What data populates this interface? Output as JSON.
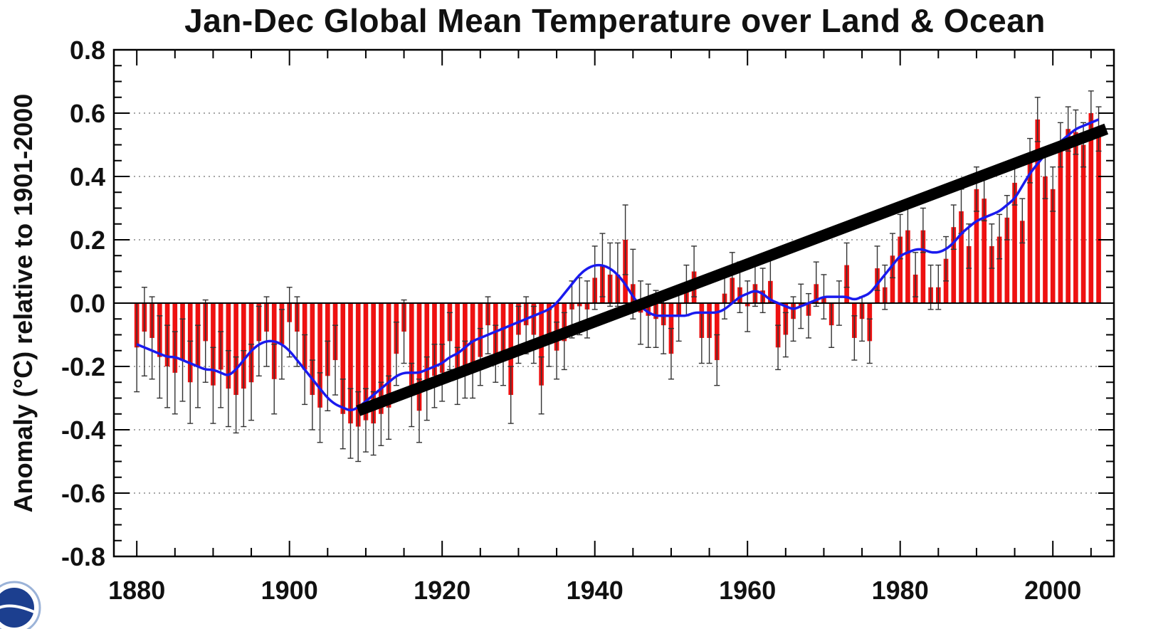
{
  "chart_data": {
    "type": "bar",
    "title": "Jan-Dec Global Mean Temperature over Land & Ocean",
    "ylabel": "Anomaly (°C) relative to 1901-2000",
    "xlabel": "",
    "xlim": [
      1877,
      2008
    ],
    "ylim": [
      -0.8,
      0.8
    ],
    "x_ticks": [
      1880,
      1900,
      1920,
      1940,
      1960,
      1980,
      2000
    ],
    "y_ticks": [
      -0.8,
      -0.6,
      -0.4,
      -0.2,
      0.0,
      0.2,
      0.4,
      0.6,
      0.8
    ],
    "y_tick_labels": [
      "-0.8",
      "-0.6",
      "-0.4",
      "-0.2",
      "0.0",
      "0.2",
      "0.4",
      "0.6",
      "0.8"
    ],
    "x_tick_labels": [
      "1880",
      "1900",
      "1920",
      "1940",
      "1960",
      "1980",
      "2000"
    ],
    "grid": "horizontal dotted at y ticks",
    "colors": {
      "bars": "#ee1111",
      "error_bars": "#333333",
      "smooth": "#1a1aee",
      "trend": "#000000",
      "axis": "#000000"
    },
    "years": [
      1880,
      1881,
      1882,
      1883,
      1884,
      1885,
      1886,
      1887,
      1888,
      1889,
      1890,
      1891,
      1892,
      1893,
      1894,
      1895,
      1896,
      1897,
      1898,
      1899,
      1900,
      1901,
      1902,
      1903,
      1904,
      1905,
      1906,
      1907,
      1908,
      1909,
      1910,
      1911,
      1912,
      1913,
      1914,
      1915,
      1916,
      1917,
      1918,
      1919,
      1920,
      1921,
      1922,
      1923,
      1924,
      1925,
      1926,
      1927,
      1928,
      1929,
      1930,
      1931,
      1932,
      1933,
      1934,
      1935,
      1936,
      1937,
      1938,
      1939,
      1940,
      1941,
      1942,
      1943,
      1944,
      1945,
      1946,
      1947,
      1948,
      1949,
      1950,
      1951,
      1952,
      1953,
      1954,
      1955,
      1956,
      1957,
      1958,
      1959,
      1960,
      1961,
      1962,
      1963,
      1964,
      1965,
      1966,
      1967,
      1968,
      1969,
      1970,
      1971,
      1972,
      1973,
      1974,
      1975,
      1976,
      1977,
      1978,
      1979,
      1980,
      1981,
      1982,
      1983,
      1984,
      1985,
      1986,
      1987,
      1988,
      1989,
      1990,
      1991,
      1992,
      1993,
      1994,
      1995,
      1996,
      1997,
      1998,
      1999,
      2000,
      2001,
      2002,
      2003,
      2004,
      2005,
      2006
    ],
    "anomaly": [
      -0.14,
      -0.09,
      -0.11,
      -0.17,
      -0.2,
      -0.22,
      -0.18,
      -0.25,
      -0.2,
      -0.12,
      -0.26,
      -0.21,
      -0.27,
      -0.29,
      -0.27,
      -0.25,
      -0.12,
      -0.09,
      -0.24,
      -0.13,
      -0.06,
      -0.09,
      -0.21,
      -0.29,
      -0.33,
      -0.23,
      -0.18,
      -0.35,
      -0.38,
      -0.39,
      -0.37,
      -0.38,
      -0.35,
      -0.33,
      -0.16,
      -0.09,
      -0.29,
      -0.34,
      -0.27,
      -0.23,
      -0.22,
      -0.12,
      -0.23,
      -0.21,
      -0.21,
      -0.17,
      -0.07,
      -0.16,
      -0.17,
      -0.29,
      -0.1,
      -0.07,
      -0.1,
      -0.26,
      -0.11,
      -0.15,
      -0.12,
      -0.02,
      -0.01,
      -0.02,
      0.08,
      0.12,
      0.09,
      0.09,
      0.2,
      0.06,
      -0.03,
      -0.04,
      -0.05,
      -0.07,
      -0.16,
      -0.04,
      0.04,
      0.1,
      -0.11,
      -0.11,
      -0.18,
      0.03,
      0.08,
      0.05,
      -0.01,
      0.06,
      0.04,
      0.07,
      -0.14,
      -0.1,
      -0.05,
      -0.01,
      -0.04,
      0.06,
      0.02,
      -0.07,
      0.0,
      0.12,
      -0.11,
      -0.05,
      -0.12,
      0.11,
      0.05,
      0.15,
      0.21,
      0.23,
      0.09,
      0.23,
      0.05,
      0.05,
      0.14,
      0.24,
      0.29,
      0.18,
      0.36,
      0.33,
      0.18,
      0.21,
      0.27,
      0.38,
      0.26,
      0.45,
      0.58,
      0.4,
      0.36,
      0.5,
      0.55,
      0.54,
      0.5,
      0.6,
      0.55
    ],
    "smoothed": [
      -0.13,
      -0.14,
      -0.15,
      -0.16,
      -0.17,
      -0.17,
      -0.18,
      -0.19,
      -0.2,
      -0.21,
      -0.21,
      -0.22,
      -0.23,
      -0.21,
      -0.18,
      -0.15,
      -0.13,
      -0.12,
      -0.12,
      -0.13,
      -0.15,
      -0.18,
      -0.21,
      -0.24,
      -0.27,
      -0.3,
      -0.32,
      -0.33,
      -0.34,
      -0.33,
      -0.31,
      -0.29,
      -0.27,
      -0.25,
      -0.23,
      -0.22,
      -0.22,
      -0.22,
      -0.21,
      -0.2,
      -0.19,
      -0.17,
      -0.16,
      -0.14,
      -0.12,
      -0.11,
      -0.1,
      -0.09,
      -0.08,
      -0.07,
      -0.06,
      -0.05,
      -0.04,
      -0.03,
      -0.02,
      0.0,
      0.03,
      0.06,
      0.09,
      0.11,
      0.12,
      0.12,
      0.11,
      0.09,
      0.06,
      0.02,
      -0.01,
      -0.03,
      -0.04,
      -0.04,
      -0.04,
      -0.04,
      -0.04,
      -0.03,
      -0.03,
      -0.03,
      -0.03,
      -0.02,
      0.0,
      0.02,
      0.03,
      0.04,
      0.03,
      0.01,
      0.0,
      -0.01,
      -0.02,
      -0.01,
      0.0,
      0.01,
      0.02,
      0.02,
      0.02,
      0.02,
      0.01,
      0.02,
      0.03,
      0.06,
      0.09,
      0.12,
      0.15,
      0.16,
      0.17,
      0.17,
      0.16,
      0.16,
      0.17,
      0.19,
      0.22,
      0.24,
      0.26,
      0.27,
      0.28,
      0.29,
      0.31,
      0.33,
      0.37,
      0.41,
      0.44,
      0.47,
      0.49,
      0.51,
      0.53,
      0.55,
      0.56,
      0.57,
      0.58
    ],
    "error_halfwidth": [
      0.14,
      0.14,
      0.13,
      0.13,
      0.13,
      0.13,
      0.13,
      0.13,
      0.13,
      0.13,
      0.12,
      0.12,
      0.12,
      0.12,
      0.12,
      0.12,
      0.11,
      0.11,
      0.11,
      0.11,
      0.11,
      0.11,
      0.11,
      0.11,
      0.11,
      0.11,
      0.11,
      0.11,
      0.11,
      0.11,
      0.1,
      0.1,
      0.1,
      0.1,
      0.1,
      0.1,
      0.1,
      0.1,
      0.1,
      0.1,
      0.09,
      0.09,
      0.09,
      0.09,
      0.09,
      0.09,
      0.09,
      0.09,
      0.09,
      0.09,
      0.09,
      0.09,
      0.09,
      0.09,
      0.09,
      0.09,
      0.09,
      0.09,
      0.09,
      0.09,
      0.1,
      0.1,
      0.1,
      0.1,
      0.11,
      0.11,
      0.1,
      0.1,
      0.09,
      0.09,
      0.08,
      0.08,
      0.08,
      0.08,
      0.08,
      0.08,
      0.08,
      0.08,
      0.08,
      0.08,
      0.08,
      0.07,
      0.07,
      0.07,
      0.07,
      0.07,
      0.07,
      0.07,
      0.07,
      0.07,
      0.07,
      0.07,
      0.07,
      0.07,
      0.07,
      0.07,
      0.07,
      0.07,
      0.07,
      0.07,
      0.07,
      0.07,
      0.07,
      0.07,
      0.07,
      0.07,
      0.07,
      0.07,
      0.07,
      0.07,
      0.07,
      0.07,
      0.07,
      0.07,
      0.07,
      0.07,
      0.07,
      0.07,
      0.07,
      0.07,
      0.07,
      0.07,
      0.07,
      0.07,
      0.07,
      0.07,
      0.07
    ],
    "trend_line": {
      "x": [
        1909,
        2007
      ],
      "y": [
        -0.34,
        0.55
      ]
    }
  }
}
